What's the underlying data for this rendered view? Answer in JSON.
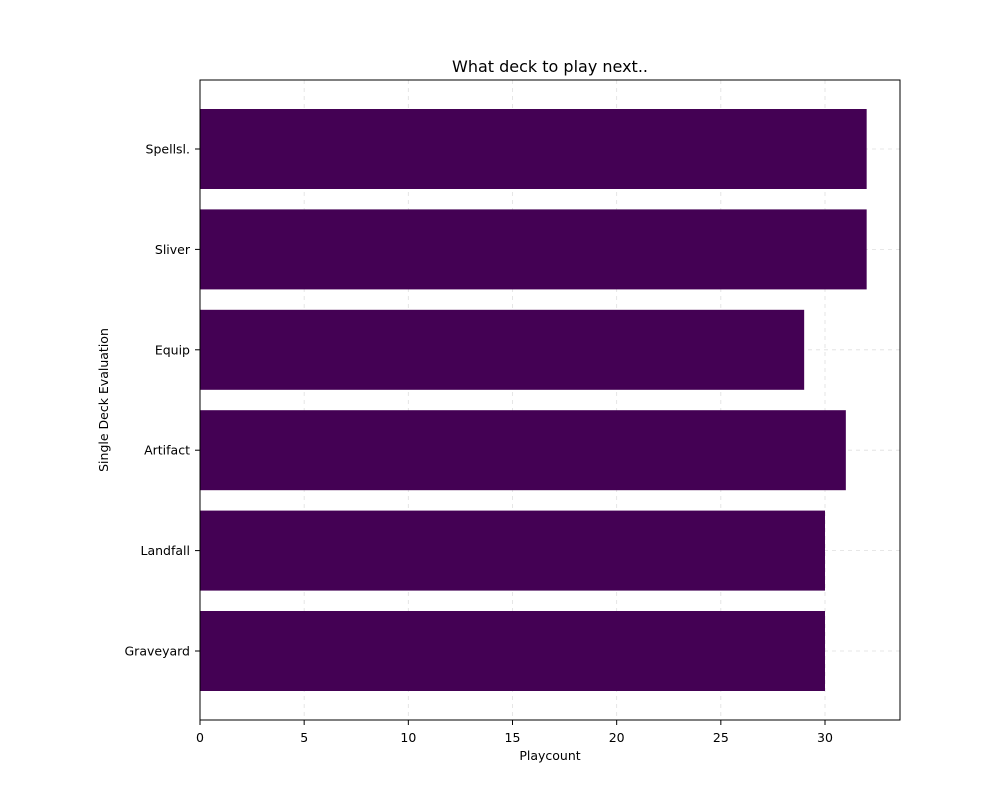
{
  "chart_data": {
    "type": "bar",
    "orientation": "horizontal",
    "title": "What deck to play next..",
    "xlabel": "Playcount",
    "ylabel": "Single Deck Evaluation",
    "categories": [
      "Graveyard",
      "Landfall",
      "Artifact",
      "Equip",
      "Sliver",
      "Spellsl."
    ],
    "values": [
      30,
      30,
      31,
      29,
      32,
      32
    ],
    "xlim": [
      0,
      33.6
    ],
    "xticks": [
      0,
      5,
      10,
      15,
      20,
      25,
      30
    ],
    "grid": true,
    "bar_color": "#440154"
  }
}
